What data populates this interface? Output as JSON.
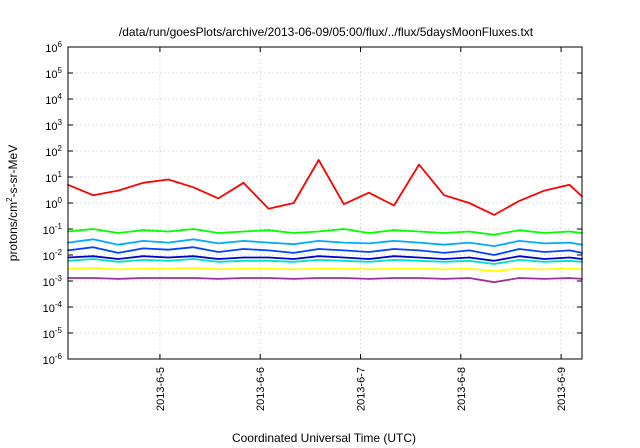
{
  "chart_data": {
    "type": "line",
    "title": "/data/run/goesPlots/archive/2013-06-09/05:00/flux/../flux/5daysMoonFluxes.txt",
    "xlabel": "Coordinated Universal Time (UTC)",
    "ylabel_prefix": "protons/cm",
    "ylabel_sup": "2",
    "ylabel_suffix": "-s-sr-MeV",
    "y_scale": "log",
    "ylim": [
      1e-06,
      1000000
    ],
    "xlim": [
      "2013-06-04T02:00",
      "2013-06-09T05:00"
    ],
    "grid": true,
    "legend": "none",
    "x_ticks": [
      "2013-6-5",
      "2013-6-6",
      "2013-6-7",
      "2013-6-8",
      "2013-6-9"
    ],
    "y_ticks": [
      {
        "base": "10",
        "exp": "-6"
      },
      {
        "base": "10",
        "exp": "-5"
      },
      {
        "base": "10",
        "exp": "-4"
      },
      {
        "base": "10",
        "exp": "-3"
      },
      {
        "base": "10",
        "exp": "-2"
      },
      {
        "base": "10",
        "exp": "-1"
      },
      {
        "base": "10",
        "exp": "0"
      },
      {
        "base": "10",
        "exp": "1"
      },
      {
        "base": "10",
        "exp": "2"
      },
      {
        "base": "10",
        "exp": "3"
      },
      {
        "base": "10",
        "exp": "4"
      },
      {
        "base": "10",
        "exp": "5"
      },
      {
        "base": "10",
        "exp": "6"
      }
    ],
    "x": [
      "2013-06-04T02:00",
      "2013-06-04T08:00",
      "2013-06-04T14:00",
      "2013-06-04T20:00",
      "2013-06-05T02:00",
      "2013-06-05T08:00",
      "2013-06-05T14:00",
      "2013-06-05T20:00",
      "2013-06-06T02:00",
      "2013-06-06T08:00",
      "2013-06-06T14:00",
      "2013-06-06T20:00",
      "2013-06-07T02:00",
      "2013-06-07T08:00",
      "2013-06-07T14:00",
      "2013-06-07T20:00",
      "2013-06-08T02:00",
      "2013-06-08T08:00",
      "2013-06-08T14:00",
      "2013-06-08T20:00",
      "2013-06-09T02:00",
      "2013-06-09T05:00"
    ],
    "series": [
      {
        "color": "#ff0000",
        "values": [
          5,
          2,
          3,
          6,
          8,
          4,
          1.5,
          6,
          0.6,
          1.0,
          45,
          0.9,
          2.5,
          0.8,
          30,
          2,
          1.0,
          0.35,
          1.2,
          3,
          5,
          1.8
        ]
      },
      {
        "color": "#00ff00",
        "values": [
          0.08,
          0.1,
          0.07,
          0.09,
          0.08,
          0.1,
          0.07,
          0.08,
          0.09,
          0.07,
          0.08,
          0.1,
          0.07,
          0.09,
          0.08,
          0.07,
          0.08,
          0.06,
          0.09,
          0.07,
          0.08,
          0.07
        ]
      },
      {
        "color": "#00aaff",
        "values": [
          0.03,
          0.04,
          0.025,
          0.035,
          0.03,
          0.04,
          0.028,
          0.035,
          0.03,
          0.026,
          0.035,
          0.03,
          0.028,
          0.035,
          0.03,
          0.025,
          0.03,
          0.022,
          0.035,
          0.028,
          0.03,
          0.025
        ]
      },
      {
        "color": "#0044ff",
        "values": [
          0.015,
          0.02,
          0.012,
          0.018,
          0.016,
          0.02,
          0.013,
          0.017,
          0.015,
          0.012,
          0.017,
          0.015,
          0.013,
          0.017,
          0.015,
          0.012,
          0.015,
          0.01,
          0.017,
          0.013,
          0.015,
          0.012
        ]
      },
      {
        "color": "#0000cc",
        "values": [
          0.008,
          0.009,
          0.007,
          0.009,
          0.008,
          0.009,
          0.007,
          0.008,
          0.008,
          0.007,
          0.009,
          0.008,
          0.007,
          0.009,
          0.008,
          0.007,
          0.008,
          0.006,
          0.009,
          0.007,
          0.008,
          0.007
        ]
      },
      {
        "color": "#00e0d0",
        "values": [
          0.006,
          0.007,
          0.0055,
          0.0065,
          0.006,
          0.007,
          0.0055,
          0.006,
          0.006,
          0.0055,
          0.0065,
          0.006,
          0.0055,
          0.0065,
          0.006,
          0.0055,
          0.006,
          0.0045,
          0.0065,
          0.0055,
          0.006,
          0.0055
        ]
      },
      {
        "color": "#ffff00",
        "values": [
          0.003,
          0.0032,
          0.0028,
          0.003,
          0.003,
          0.0032,
          0.0028,
          0.003,
          0.003,
          0.0028,
          0.003,
          0.003,
          0.0028,
          0.003,
          0.003,
          0.0028,
          0.003,
          0.0024,
          0.003,
          0.0028,
          0.003,
          0.0028
        ]
      },
      {
        "color": "#993399",
        "values": [
          0.0013,
          0.0013,
          0.0012,
          0.0013,
          0.0013,
          0.0013,
          0.0012,
          0.0013,
          0.0013,
          0.0012,
          0.0013,
          0.0013,
          0.0012,
          0.0013,
          0.0013,
          0.0012,
          0.0013,
          0.0009,
          0.0013,
          0.0012,
          0.0013,
          0.0012
        ]
      }
    ]
  }
}
